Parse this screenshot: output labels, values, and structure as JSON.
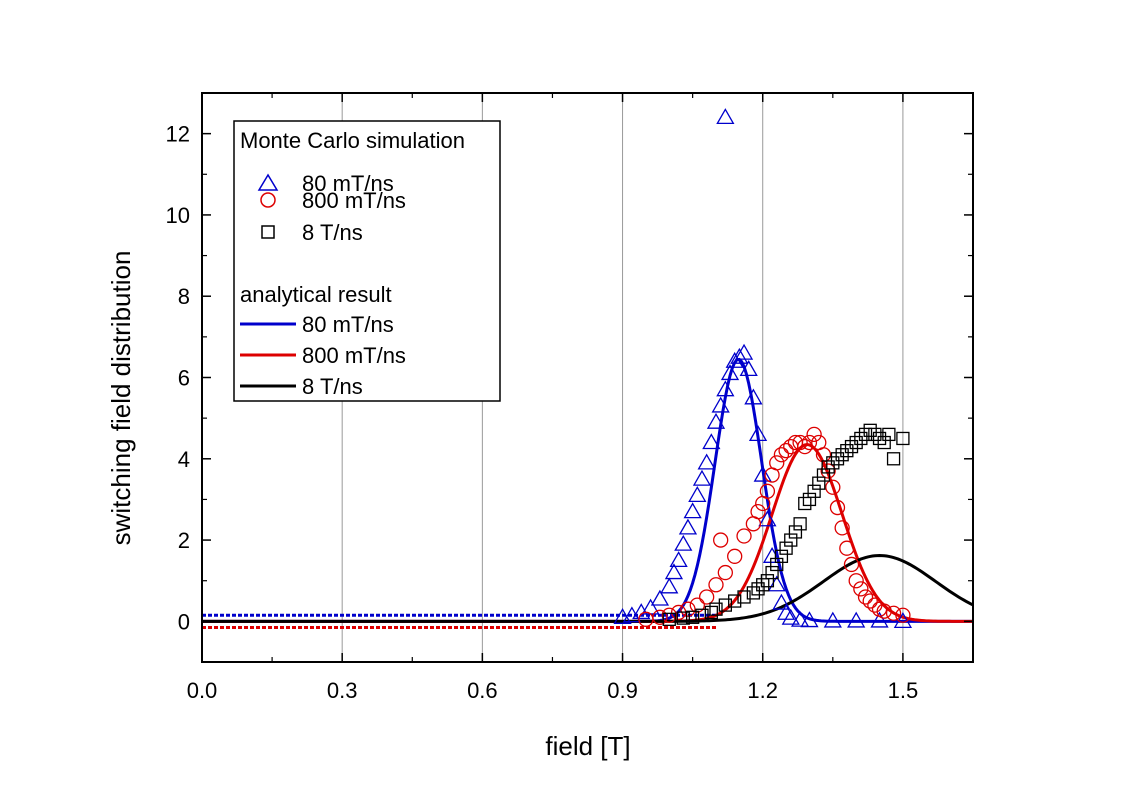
{
  "chart_data": {
    "type": "scatter",
    "xlabel": "field [T]",
    "ylabel": "switching field distribution",
    "xlim": [
      0.0,
      1.65
    ],
    "ylim": [
      -1.0,
      13.0
    ],
    "x_ticks": [
      "0.0",
      "0.3",
      "0.6",
      "0.9",
      "1.2",
      "1.5"
    ],
    "x_tick_values": [
      0.0,
      0.3,
      0.6,
      0.9,
      1.2,
      1.5
    ],
    "y_ticks": [
      "0",
      "2",
      "4",
      "6",
      "8",
      "10",
      "12"
    ],
    "y_tick_values": [
      0,
      2,
      4,
      6,
      8,
      10,
      12
    ],
    "vertical_grid": true,
    "legend_position": "top-left",
    "legend": {
      "group1_title": "Monte Carlo simulation",
      "group1_items": [
        "80 mT/ns",
        "800 mT/ns",
        "8 T/ns"
      ],
      "group2_title": "analytical result",
      "group2_items": [
        "80 mT/ns",
        "800 mT/ns",
        "8 T/ns"
      ]
    },
    "colors": {
      "blue": "#0000cc",
      "red": "#dd0000",
      "black": "#000000"
    },
    "scatter_series": [
      {
        "name": "80 mT/ns",
        "marker": "triangle",
        "color": "#0000cc",
        "points": [
          [
            1.12,
            12.4
          ],
          [
            0.9,
            0.1
          ],
          [
            0.92,
            0.14
          ],
          [
            0.94,
            0.22
          ],
          [
            0.96,
            0.33
          ],
          [
            0.98,
            0.55
          ],
          [
            1.0,
            0.85
          ],
          [
            1.01,
            1.2
          ],
          [
            1.02,
            1.5
          ],
          [
            1.03,
            1.9
          ],
          [
            1.04,
            2.3
          ],
          [
            1.05,
            2.7
          ],
          [
            1.06,
            3.1
          ],
          [
            1.07,
            3.5
          ],
          [
            1.08,
            3.9
          ],
          [
            1.09,
            4.4
          ],
          [
            1.1,
            4.9
          ],
          [
            1.11,
            5.3
          ],
          [
            1.12,
            5.7
          ],
          [
            1.13,
            6.1
          ],
          [
            1.14,
            6.4
          ],
          [
            1.15,
            6.5
          ],
          [
            1.16,
            6.6
          ],
          [
            1.17,
            6.2
          ],
          [
            1.18,
            5.5
          ],
          [
            1.19,
            4.6
          ],
          [
            1.2,
            3.6
          ],
          [
            1.21,
            2.5
          ],
          [
            1.22,
            1.6
          ],
          [
            1.23,
            0.9
          ],
          [
            1.24,
            0.45
          ],
          [
            1.25,
            0.2
          ],
          [
            1.26,
            0.08
          ],
          [
            1.28,
            0.03
          ],
          [
            1.3,
            0.02
          ],
          [
            1.35,
            0.01
          ],
          [
            1.4,
            0.01
          ],
          [
            1.45,
            0.01
          ],
          [
            1.5,
            0.0
          ]
        ]
      },
      {
        "name": "800 mT/ns",
        "marker": "circle",
        "color": "#dd0000",
        "points": [
          [
            1.11,
            2.0
          ],
          [
            0.95,
            0.05
          ],
          [
            0.98,
            0.1
          ],
          [
            1.0,
            0.15
          ],
          [
            1.02,
            0.22
          ],
          [
            1.04,
            0.3
          ],
          [
            1.06,
            0.4
          ],
          [
            1.08,
            0.6
          ],
          [
            1.1,
            0.9
          ],
          [
            1.12,
            1.2
          ],
          [
            1.14,
            1.6
          ],
          [
            1.16,
            2.1
          ],
          [
            1.18,
            2.4
          ],
          [
            1.19,
            2.7
          ],
          [
            1.2,
            2.9
          ],
          [
            1.21,
            3.2
          ],
          [
            1.22,
            3.6
          ],
          [
            1.23,
            3.9
          ],
          [
            1.24,
            4.1
          ],
          [
            1.25,
            4.2
          ],
          [
            1.26,
            4.3
          ],
          [
            1.27,
            4.4
          ],
          [
            1.28,
            4.4
          ],
          [
            1.29,
            4.3
          ],
          [
            1.3,
            4.4
          ],
          [
            1.31,
            4.6
          ],
          [
            1.32,
            4.4
          ],
          [
            1.33,
            4.1
          ],
          [
            1.34,
            3.7
          ],
          [
            1.35,
            3.3
          ],
          [
            1.36,
            2.8
          ],
          [
            1.37,
            2.3
          ],
          [
            1.38,
            1.8
          ],
          [
            1.39,
            1.4
          ],
          [
            1.4,
            1.0
          ],
          [
            1.41,
            0.8
          ],
          [
            1.42,
            0.6
          ],
          [
            1.43,
            0.5
          ],
          [
            1.44,
            0.4
          ],
          [
            1.45,
            0.3
          ],
          [
            1.46,
            0.25
          ],
          [
            1.48,
            0.2
          ],
          [
            1.5,
            0.15
          ]
        ]
      },
      {
        "name": "8 T/ns",
        "marker": "square",
        "color": "#000000",
        "points": [
          [
            1.0,
            0.05
          ],
          [
            1.03,
            0.08
          ],
          [
            1.05,
            0.1
          ],
          [
            1.07,
            0.15
          ],
          [
            1.09,
            0.22
          ],
          [
            1.1,
            0.3
          ],
          [
            1.12,
            0.4
          ],
          [
            1.14,
            0.5
          ],
          [
            1.16,
            0.6
          ],
          [
            1.18,
            0.7
          ],
          [
            1.19,
            0.8
          ],
          [
            1.2,
            0.9
          ],
          [
            1.21,
            1.0
          ],
          [
            1.22,
            1.2
          ],
          [
            1.23,
            1.4
          ],
          [
            1.24,
            1.6
          ],
          [
            1.25,
            1.8
          ],
          [
            1.26,
            2.0
          ],
          [
            1.27,
            2.2
          ],
          [
            1.28,
            2.4
          ],
          [
            1.29,
            2.9
          ],
          [
            1.3,
            3.0
          ],
          [
            1.31,
            3.2
          ],
          [
            1.32,
            3.4
          ],
          [
            1.33,
            3.6
          ],
          [
            1.34,
            3.8
          ],
          [
            1.35,
            3.9
          ],
          [
            1.36,
            4.0
          ],
          [
            1.37,
            4.1
          ],
          [
            1.38,
            4.2
          ],
          [
            1.39,
            4.3
          ],
          [
            1.4,
            4.4
          ],
          [
            1.41,
            4.5
          ],
          [
            1.42,
            4.6
          ],
          [
            1.43,
            4.7
          ],
          [
            1.44,
            4.6
          ],
          [
            1.45,
            4.5
          ],
          [
            1.46,
            4.4
          ],
          [
            1.47,
            4.6
          ],
          [
            1.48,
            4.0
          ],
          [
            1.5,
            4.5
          ]
        ]
      }
    ],
    "line_series": [
      {
        "name": "80 mT/ns",
        "color": "#0000cc",
        "shape": "gaussian",
        "center": 1.148,
        "peak": 6.45,
        "width": 0.05
      },
      {
        "name": "800 mT/ns",
        "color": "#dd0000",
        "shape": "gaussian",
        "center": 1.295,
        "peak": 4.35,
        "width": 0.075
      },
      {
        "name": "8 T/ns",
        "color": "#000000",
        "shape": "gaussian",
        "center": 1.45,
        "peak": 1.62,
        "width": 0.12
      }
    ],
    "baseline_band": {
      "y_values": [
        0.15,
        -0.15
      ],
      "x_range": [
        0.0,
        1.1
      ]
    }
  }
}
